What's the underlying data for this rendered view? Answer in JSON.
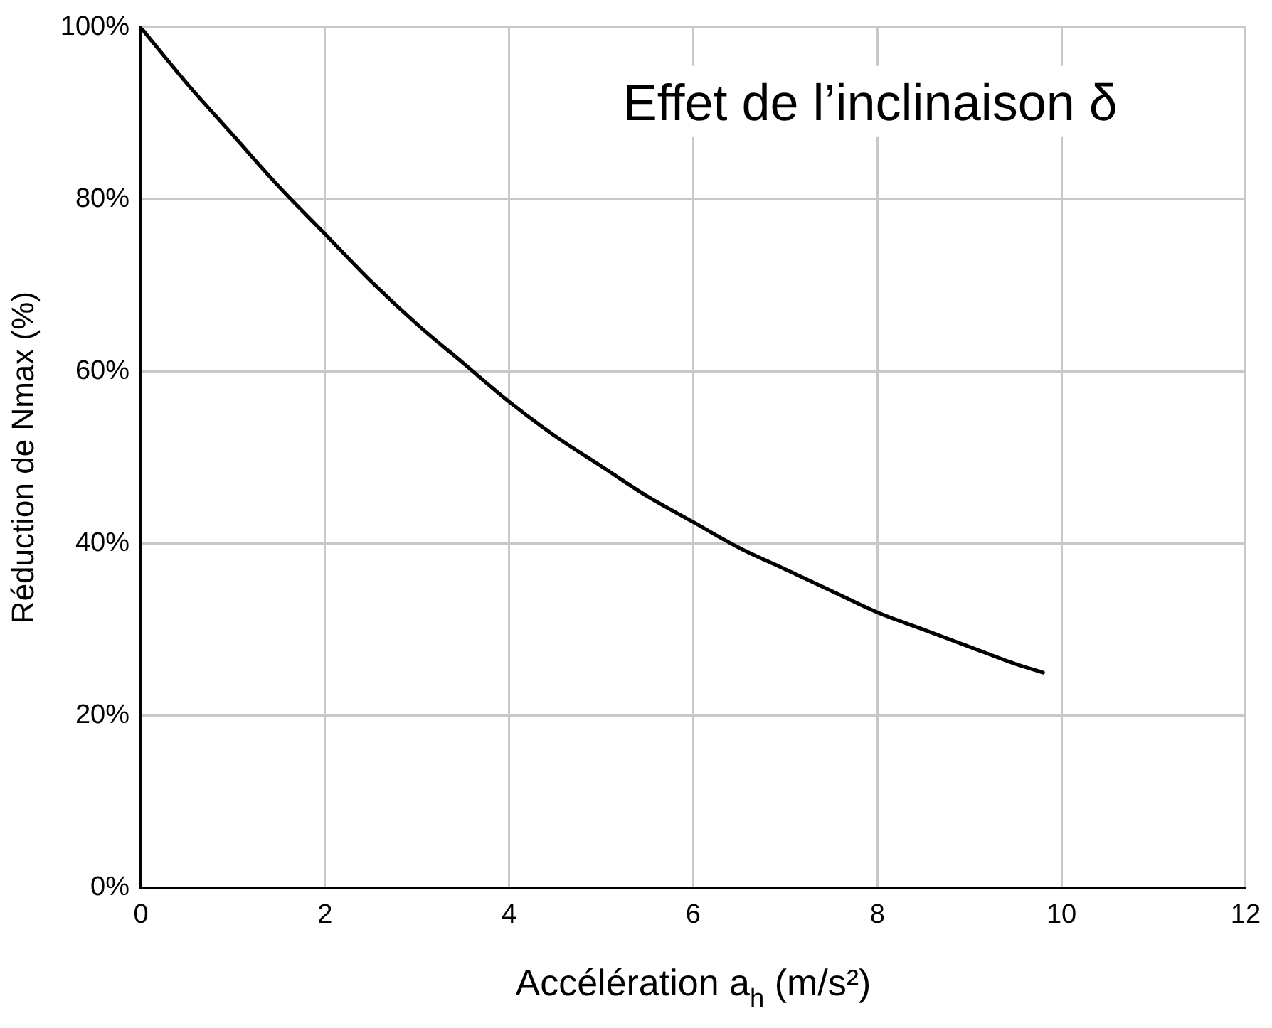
{
  "chart_data": {
    "type": "line",
    "xlabel": "Accélération a$_{h}$ (m/s²)",
    "ylabel": "Réduction de Nmax (%)",
    "annotations": [
      "Effet de l’inclinaison δ"
    ],
    "series": [
      {
        "color": "#000000",
        "x": [
          0,
          0.5,
          1,
          1.5,
          2,
          2.5,
          3,
          3.5,
          4,
          4.5,
          5,
          5.5,
          6,
          6.5,
          7,
          7.5,
          8,
          8.5,
          9,
          9.5,
          9.8
        ],
        "values": [
          100,
          93.5,
          87.5,
          81.5,
          76,
          70.5,
          65.5,
          61,
          56.5,
          52.5,
          49,
          45.5,
          42.5,
          39.5,
          37,
          34.5,
          32,
          30,
          28,
          26,
          25
        ]
      }
    ],
    "xlim": [
      0,
      12
    ],
    "xticks": [
      0,
      2,
      4,
      6,
      8,
      10,
      12
    ],
    "ylim": [
      0,
      100
    ],
    "yticks": [
      {
        "value": 0,
        "label": "0%"
      },
      {
        "value": 20,
        "label": "20%"
      },
      {
        "value": 40,
        "label": "40%"
      },
      {
        "value": 60,
        "label": "60%"
      },
      {
        "value": 80,
        "label": "80%"
      },
      {
        "value": 100,
        "label": "100%"
      }
    ],
    "grid": true,
    "legend": false,
    "marker": "none",
    "line_style": "solid"
  }
}
